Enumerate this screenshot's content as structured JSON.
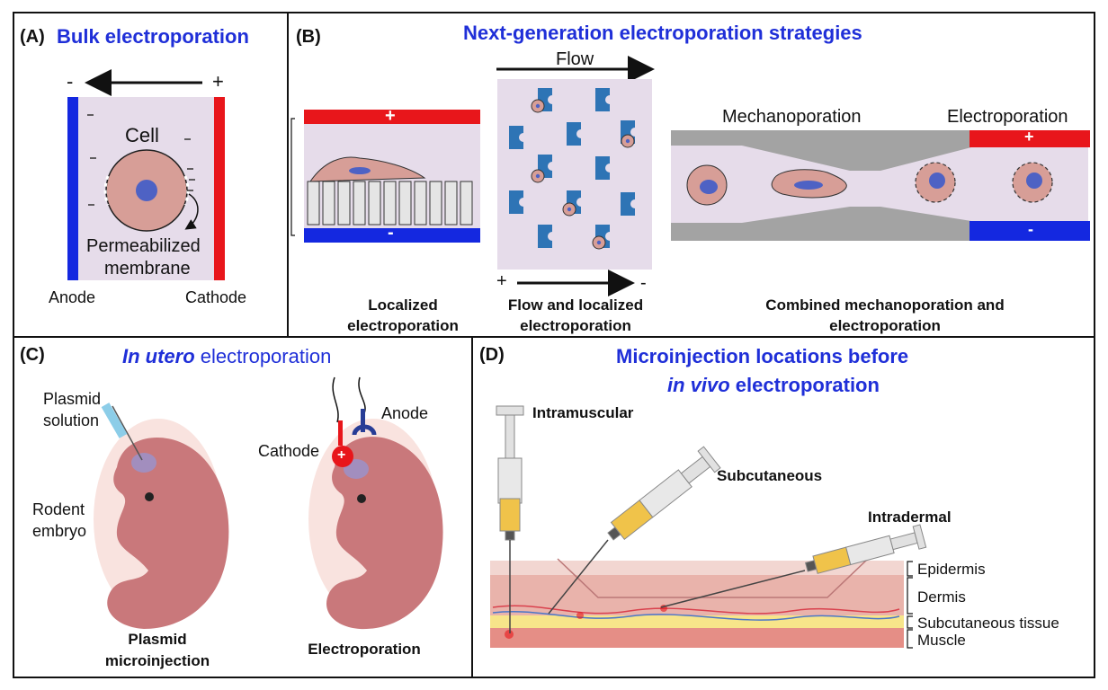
{
  "panelA": {
    "letter": "(A)",
    "title": "Bulk electroporation",
    "minus": "-",
    "plus": "+",
    "cell": "Cell",
    "permeabilized_1": "Permeabilized",
    "permeabilized_2": "membrane",
    "anode": "Anode",
    "cathode": "Cathode"
  },
  "panelB": {
    "letter": "(B)",
    "title": "Next-generation electroporation strategies",
    "flow": "Flow",
    "plus": "+",
    "minus": "-",
    "plus2": "+",
    "minus2": "-",
    "plus3": "+",
    "minus3": "-",
    "mechanoporation": "Mechanoporation",
    "electroporation": "Electroporation",
    "cap1_1": "Localized",
    "cap1_2": "electroporation",
    "cap2_1": "Flow and localized",
    "cap2_2": "electroporation",
    "cap3_1": "Combined mechanoporation and",
    "cap3_2": "electroporation"
  },
  "panelC": {
    "letter": "(C)",
    "title_italic": "In utero",
    "title_rest": " electroporation",
    "plasmid_1": "Plasmid",
    "plasmid_2": "solution",
    "rodent_1": "Rodent",
    "rodent_2": "embryo",
    "cathode": "Cathode",
    "anode": "Anode",
    "cap1_1": "Plasmid",
    "cap1_2": "microinjection",
    "cap2": "Electroporation",
    "plus": "+"
  },
  "panelD": {
    "letter": "(D)",
    "title_1": "Microinjection locations before",
    "title_2_italic": "in vivo",
    "title_2_rest": " electroporation",
    "intramuscular": "Intramuscular",
    "subcutaneous": "Subcutaneous",
    "intradermal": "Intradermal",
    "epidermis": "Epidermis",
    "dermis": "Dermis",
    "subcutaneous_tissue": "Subcutaneous tissue",
    "muscle": "Muscle"
  },
  "colors": {
    "title_blue": "#1f2fd8",
    "electrode_red": "#e8161b",
    "electrode_blue": "#1428e0",
    "medium": "#e6dcea",
    "cell": "#d79e97",
    "nucleus": "#4e62c4",
    "pillar": "#2e74b5",
    "tissue_pink": "#e9b3ab"
  }
}
